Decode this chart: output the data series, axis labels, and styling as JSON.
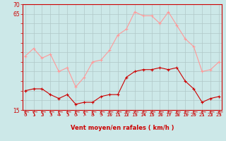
{
  "hours": [
    0,
    1,
    2,
    3,
    4,
    5,
    6,
    7,
    8,
    9,
    10,
    11,
    12,
    13,
    14,
    15,
    16,
    17,
    18,
    19,
    20,
    21,
    22,
    23
  ],
  "wind_mean": [
    25,
    26,
    26,
    23,
    21,
    23,
    18,
    19,
    19,
    22,
    23,
    23,
    32,
    35,
    36,
    36,
    37,
    36,
    37,
    30,
    26,
    19,
    21,
    22
  ],
  "wind_gusts": [
    43,
    47,
    42,
    44,
    35,
    37,
    27,
    32,
    40,
    41,
    46,
    54,
    57,
    66,
    64,
    64,
    60,
    66,
    59,
    52,
    48,
    35,
    36,
    40
  ],
  "bg_color": "#cce8e8",
  "grid_color": "#b0c8c8",
  "mean_color": "#cc0000",
  "gust_color": "#ff9999",
  "axis_label_color": "#cc0000",
  "xlabel": "Vent moyen/en rafales ( km/h )",
  "ylim": [
    15,
    70
  ],
  "yticks": [
    15,
    20,
    25,
    30,
    35,
    40,
    45,
    50,
    55,
    60,
    65,
    70
  ],
  "ytick_labels": [
    "15",
    "",
    "",
    "",
    "",
    "",
    "",
    "",
    "",
    "",
    "65",
    "70"
  ],
  "xtick_fontsize": 5.0,
  "ytick_fontsize": 5.5,
  "xlabel_fontsize": 6.0
}
